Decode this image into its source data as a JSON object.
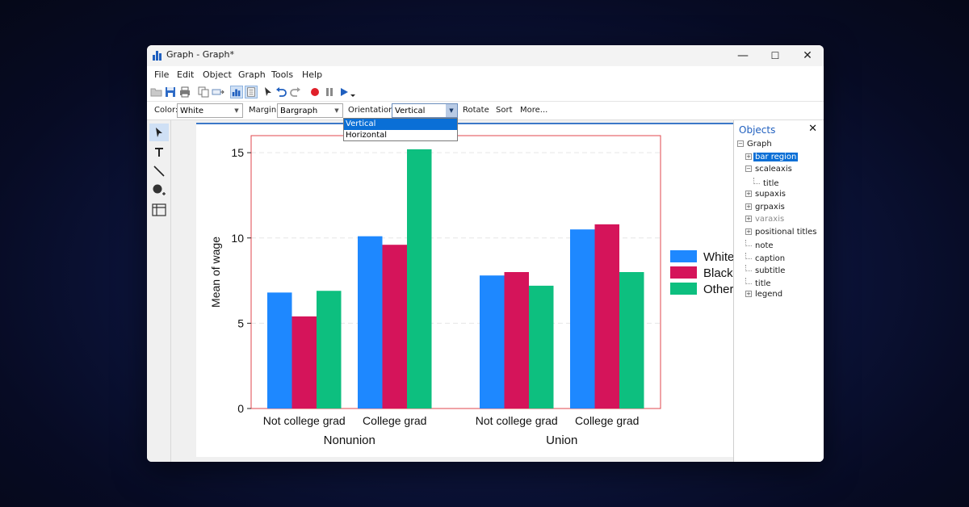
{
  "window": {
    "title": "Graph - Graph*",
    "controls": {
      "minimize": "—",
      "maximize": "☐",
      "close": "✕"
    }
  },
  "menu": [
    "File",
    "Edit",
    "Object",
    "Graph",
    "Tools",
    "Help"
  ],
  "propbar": {
    "color_label": "Color:",
    "color_value": "White",
    "margin_label": "Margin:",
    "margin_value": "Bargraph",
    "orientation_label": "Orientation:",
    "orientation_value": "Vertical",
    "rotate": "Rotate",
    "sort": "Sort",
    "more": "More..."
  },
  "orientation_dropdown": {
    "options": [
      "Vertical",
      "Horizontal"
    ],
    "selected": "Vertical"
  },
  "left_tools": [
    "pointer-icon",
    "text-icon",
    "line-icon",
    "marker-icon",
    "grid-icon"
  ],
  "objects_panel": {
    "title": "Objects",
    "close": "✕",
    "tree": [
      {
        "label": "Graph",
        "expander": "−",
        "level": 0
      },
      {
        "label": "bar region",
        "expander": "+",
        "level": 1,
        "selected": true
      },
      {
        "label": "scaleaxis",
        "expander": "−",
        "level": 1
      },
      {
        "label": "title",
        "expander": "",
        "level": 2
      },
      {
        "label": "supaxis",
        "expander": "+",
        "level": 1
      },
      {
        "label": "grpaxis",
        "expander": "+",
        "level": 1
      },
      {
        "label": "varaxis",
        "expander": "+",
        "level": 1,
        "dim": true
      },
      {
        "label": "positional titles",
        "expander": "+",
        "level": 1
      },
      {
        "label": "note",
        "expander": "",
        "level": 1
      },
      {
        "label": "caption",
        "expander": "",
        "level": 1
      },
      {
        "label": "subtitle",
        "expander": "",
        "level": 1
      },
      {
        "label": "title",
        "expander": "",
        "level": 1
      },
      {
        "label": "legend",
        "expander": "+",
        "level": 1
      }
    ]
  },
  "colors": {
    "white": "#1e88ff",
    "black": "#d5145a",
    "other": "#0dbf7f",
    "frame": "#e0474c",
    "accent": "#0a6fd6"
  },
  "chart_data": {
    "type": "bar",
    "ylabel": "Mean of wage",
    "ylim": [
      0,
      16
    ],
    "yticks": [
      0,
      5,
      10,
      15
    ],
    "grid": true,
    "legend_position": "right",
    "groups": [
      {
        "name": "Nonunion",
        "categories": [
          "Not college grad",
          "College grad"
        ]
      },
      {
        "name": "Union",
        "categories": [
          "Not college grad",
          "College grad"
        ]
      }
    ],
    "series": [
      {
        "name": "White",
        "values": [
          6.8,
          10.1,
          7.8,
          10.5
        ]
      },
      {
        "name": "Black",
        "values": [
          5.4,
          9.6,
          8.0,
          10.8
        ]
      },
      {
        "name": "Other",
        "values": [
          6.9,
          15.2,
          7.2,
          8.0
        ]
      }
    ]
  }
}
